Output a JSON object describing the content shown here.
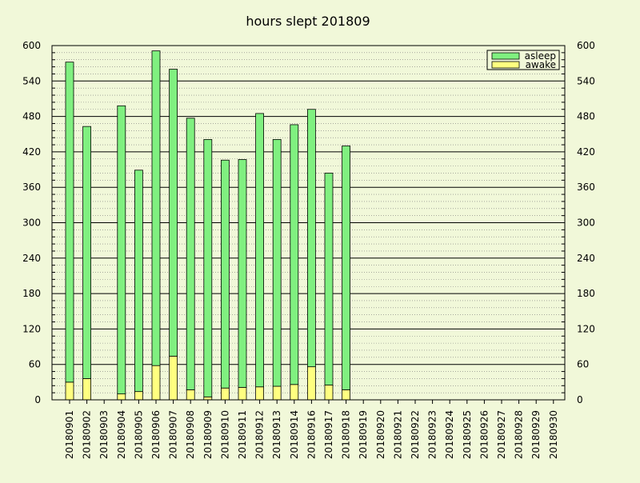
{
  "chart_data": {
    "type": "bar",
    "stacked": true,
    "title": "hours slept 201809",
    "xlabel": "",
    "ylabel": "",
    "ylim": [
      0,
      600
    ],
    "y_ticks": [
      0,
      60,
      120,
      180,
      240,
      300,
      360,
      420,
      480,
      540,
      600
    ],
    "y_ticks_labels": [
      "0",
      "60",
      "120",
      "180",
      "240",
      "300",
      "360",
      "420",
      "480",
      "540",
      "600"
    ],
    "y_minor_step": 12,
    "right_axis_mirrored": true,
    "grid": "horizontal",
    "legend_position": "top-right",
    "categories": [
      "20180901",
      "20180902",
      "20180903",
      "20180904",
      "20180905",
      "20180906",
      "20180907",
      "20180908",
      "20180909",
      "20180910",
      "20180911",
      "20180912",
      "20180913",
      "20180914",
      "20180916",
      "20180917",
      "20180918",
      "20180919",
      "20180920",
      "20180921",
      "20180922",
      "20180923",
      "20180924",
      "20180925",
      "20180926",
      "20180927",
      "20180928",
      "20180929",
      "20180930"
    ],
    "series": [
      {
        "name": "awake",
        "color": "#ffff80",
        "values": [
          30,
          36,
          0,
          10,
          14,
          58,
          74,
          17,
          5,
          20,
          21,
          22,
          23,
          26,
          56,
          25,
          17,
          0,
          0,
          0,
          0,
          0,
          0,
          0,
          0,
          0,
          0,
          0,
          0
        ]
      },
      {
        "name": "asleep",
        "color": "#80f080",
        "values": [
          542,
          427,
          0,
          488,
          375,
          533,
          486,
          460,
          436,
          386,
          386,
          463,
          418,
          440,
          436,
          359,
          413,
          0,
          0,
          0,
          0,
          0,
          0,
          0,
          0,
          0,
          0,
          0,
          0
        ]
      }
    ],
    "legend_order": [
      "asleep",
      "awake"
    ]
  }
}
